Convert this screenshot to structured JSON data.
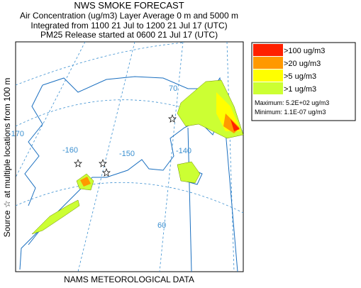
{
  "header": {
    "title": "NWS SMOKE FORECAST",
    "lines": [
      "Air Concentration (ug/m3) Layer Average    0 m and  5000 m",
      "Integrated from 1100 21 Jul to 1200 21 Jul 17 (UTC)",
      "PM25 Release started at 0600 21 Jul 17 (UTC)"
    ]
  },
  "side_label": "Source ☆ at multiple locations from  100 m",
  "footer": "NAMS METEOROLOGICAL DATA",
  "legend": {
    "items": [
      {
        "label": ">100 ug/m3",
        "color": "#ff2000"
      },
      {
        "label": ">20 ug/m3",
        "color": "#ff9900"
      },
      {
        "label": ">5 ug/m3",
        "color": "#ffff00"
      },
      {
        "label": ">1 ug/m3",
        "color": "#ccff33"
      }
    ],
    "maximum": "Maximum: 5.2E+02 ug/m3",
    "minimum": "Minimum: 1.1E-07 ug/m3"
  },
  "map": {
    "labels": [
      "70",
      "-170",
      "-160",
      "-150",
      "-140",
      "60"
    ]
  }
}
